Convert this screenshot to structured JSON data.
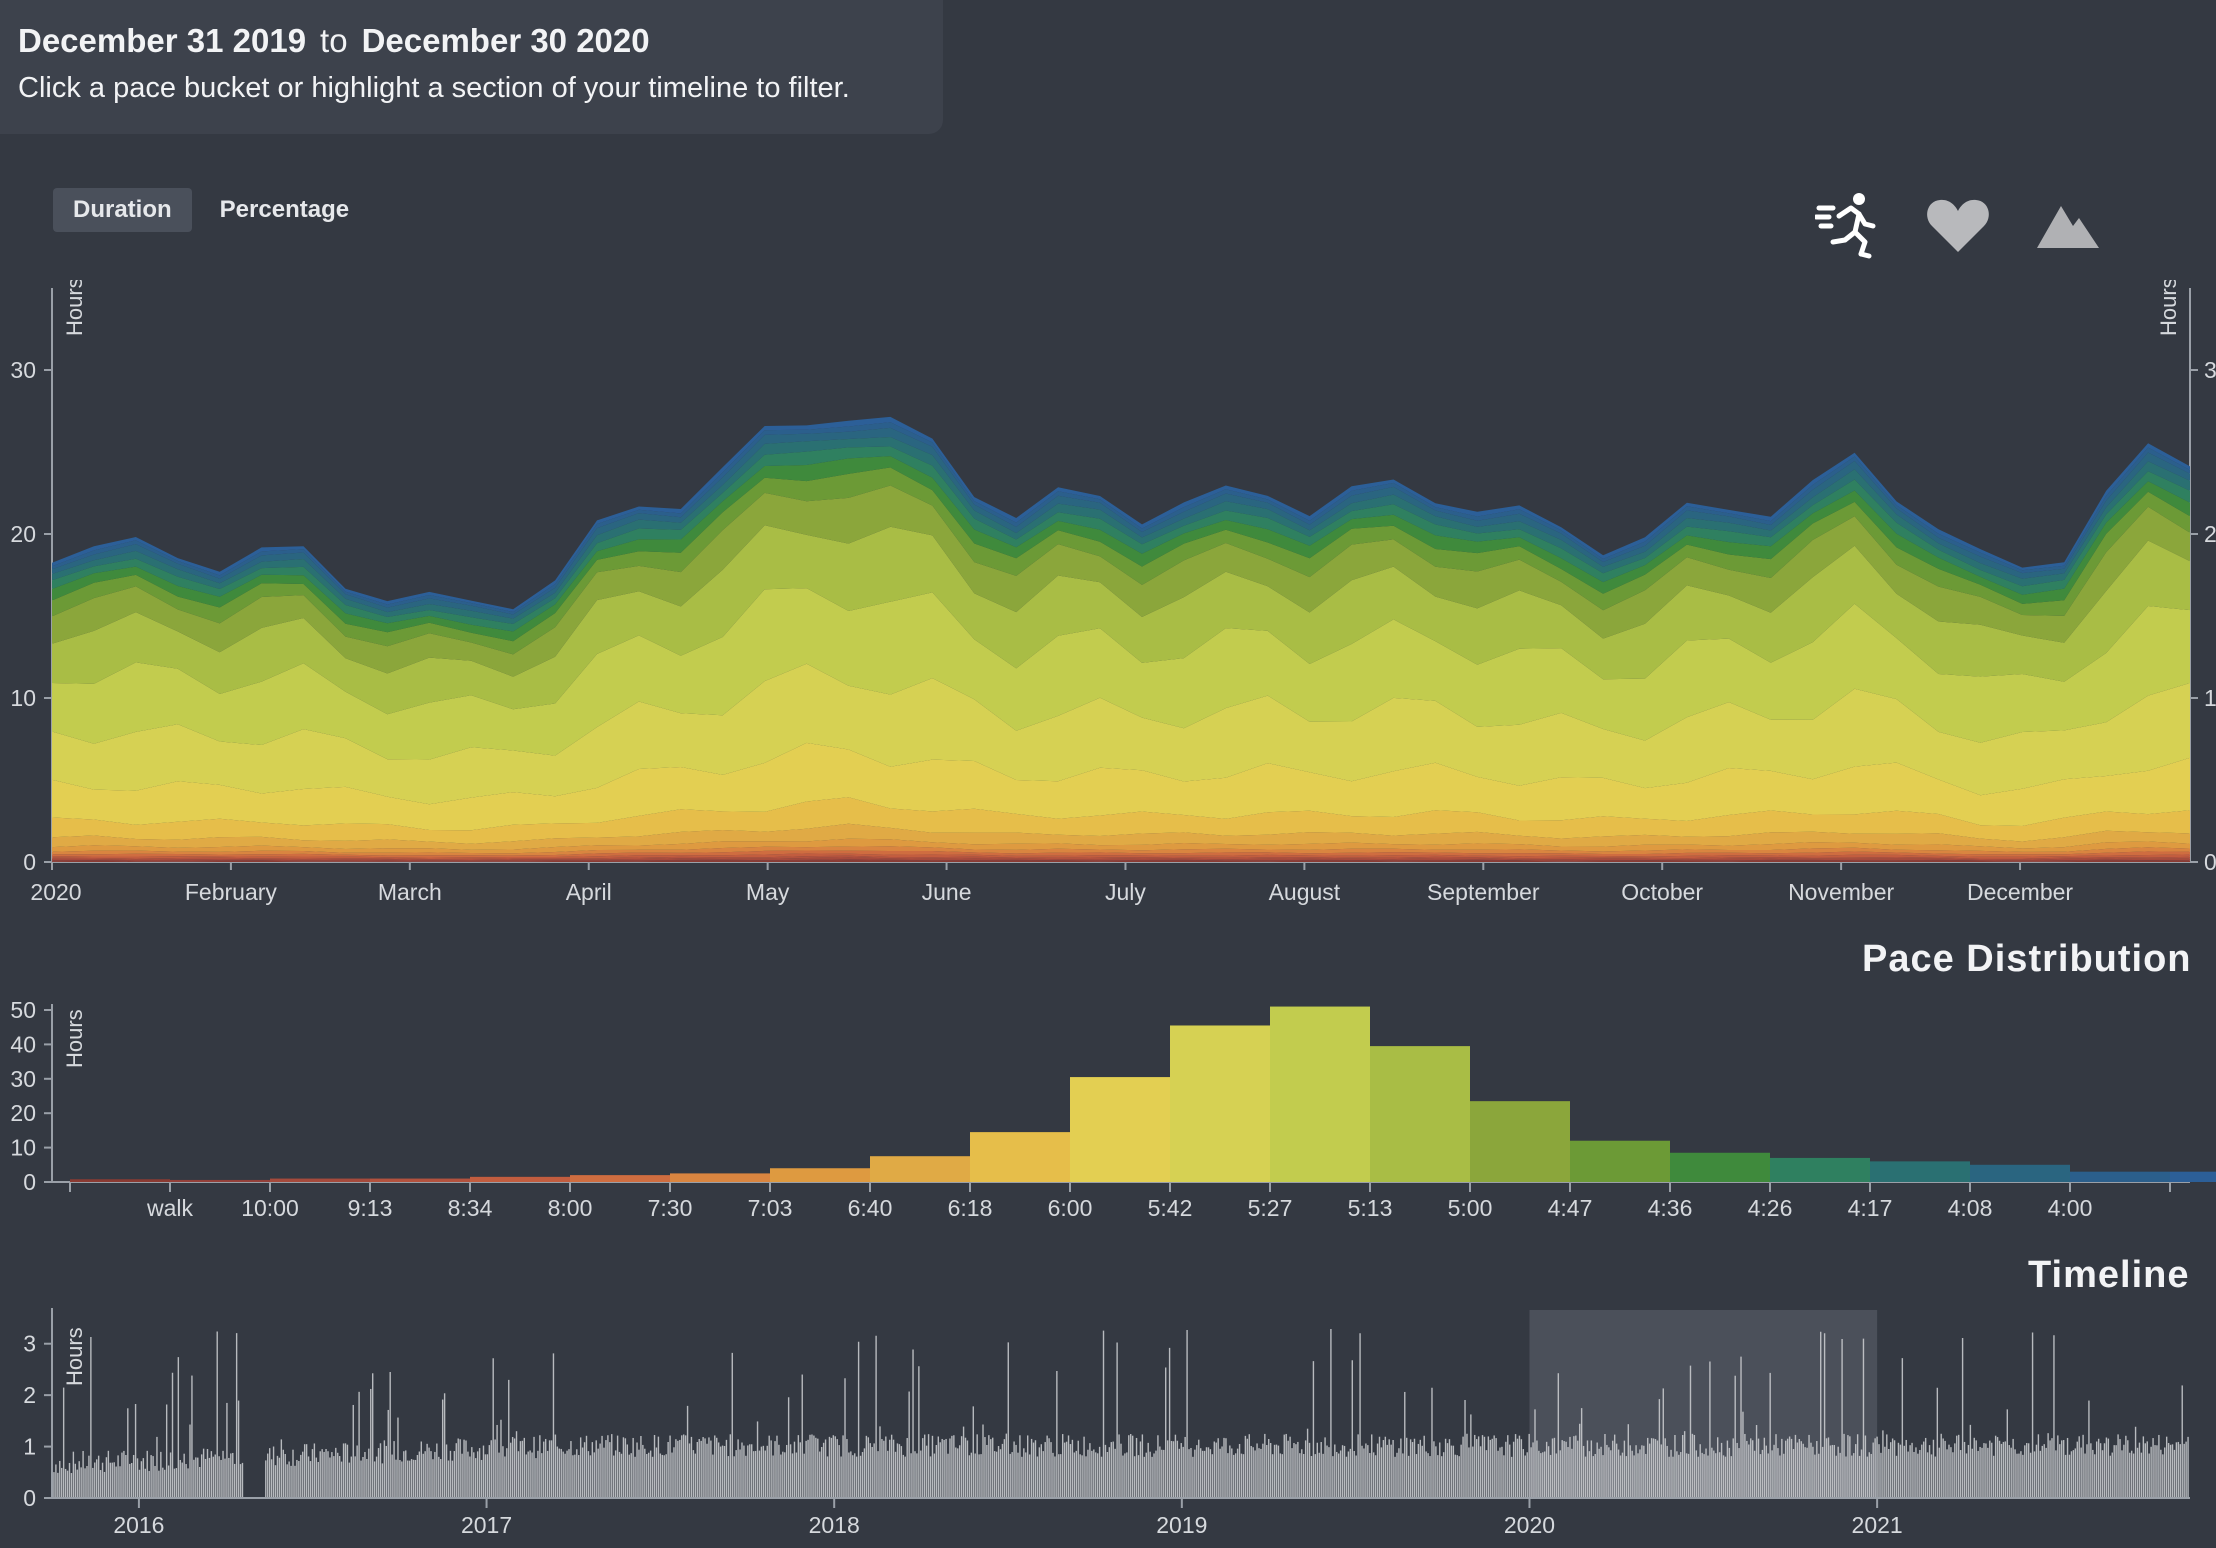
{
  "header": {
    "start_date": "December 31 2019",
    "to_label": "to",
    "end_date": "December 30 2020",
    "hint": "Click a pace bucket or highlight a section of your timeline to filter."
  },
  "mode_toggle": {
    "duration_label": "Duration",
    "percentage_label": "Percentage",
    "active": "Duration"
  },
  "metric_icons": [
    "runner-icon",
    "heart-icon",
    "mountain-icon"
  ],
  "colors": {
    "background": "#343942",
    "panel": "#3d424c",
    "pace_colors": [
      "#8a3a32",
      "#93403a",
      "#a54a3c",
      "#b3523e",
      "#c25d3f",
      "#cf6d40",
      "#d98540",
      "#de9a40",
      "#e0aa45",
      "#e6be4a",
      "#e3cf52",
      "#d6d153",
      "#c2cc4e",
      "#a9bd45",
      "#8ba63b",
      "#6c9a36",
      "#3f8a3c",
      "#2f8060",
      "#2a7072",
      "#2a6580",
      "#2b5f8c",
      "#2c5f98"
    ]
  },
  "chart_data": [
    {
      "id": "duration-stream",
      "type": "area",
      "title": "",
      "ylabel": "Hours",
      "ylim": [
        0,
        35
      ],
      "yticks": [
        0,
        10,
        20,
        30
      ],
      "xticks": [
        "2020",
        "February",
        "March",
        "April",
        "May",
        "June",
        "July",
        "August",
        "September",
        "October",
        "November",
        "December"
      ],
      "total_hours_by_week": [
        19,
        19.5,
        19,
        18.5,
        18.5,
        19,
        18.5,
        17,
        16.5,
        16,
        15.5,
        16,
        17.5,
        20,
        21.5,
        22.5,
        24,
        25.5,
        27,
        28,
        26.5,
        25,
        23,
        21.5,
        22,
        22,
        21.5,
        22,
        22,
        22.5,
        22,
        22.5,
        22.5,
        22.5,
        22,
        21,
        20,
        19.5,
        20,
        21,
        21.5,
        22,
        23,
        24,
        22.5,
        21,
        18.5,
        17.5,
        19,
        23,
        24.5,
        24
      ]
    },
    {
      "id": "pace-distribution",
      "type": "bar",
      "title": "Pace Distribution",
      "ylabel": "Hours",
      "ylim": [
        0,
        50
      ],
      "yticks": [
        0,
        10,
        20,
        30,
        40,
        50
      ],
      "categories": [
        "",
        "walk",
        "10:00",
        "9:13",
        "8:34",
        "8:00",
        "7:30",
        "7:03",
        "6:40",
        "6:18",
        "6:00",
        "5:42",
        "5:27",
        "5:13",
        "5:00",
        "4:47",
        "4:36",
        "4:26",
        "4:17",
        "4:08",
        "4:00",
        ""
      ],
      "values": [
        0.8,
        0.6,
        1,
        1,
        1.5,
        2,
        2.5,
        4,
        7.5,
        14.5,
        30.5,
        45.5,
        51,
        39.5,
        23.5,
        12,
        8.5,
        7,
        6,
        5,
        3,
        3
      ]
    },
    {
      "id": "timeline",
      "type": "bar",
      "title": "Timeline",
      "ylabel": "Hours",
      "ylim": [
        0,
        3.5
      ],
      "yticks": [
        0,
        1,
        2,
        3
      ],
      "xticks": [
        "2016",
        "2017",
        "2018",
        "2019",
        "2020",
        "2021"
      ],
      "x_range_years": [
        2015.75,
        2021.9
      ],
      "selection_years": [
        2020.0,
        2021.0
      ]
    }
  ]
}
